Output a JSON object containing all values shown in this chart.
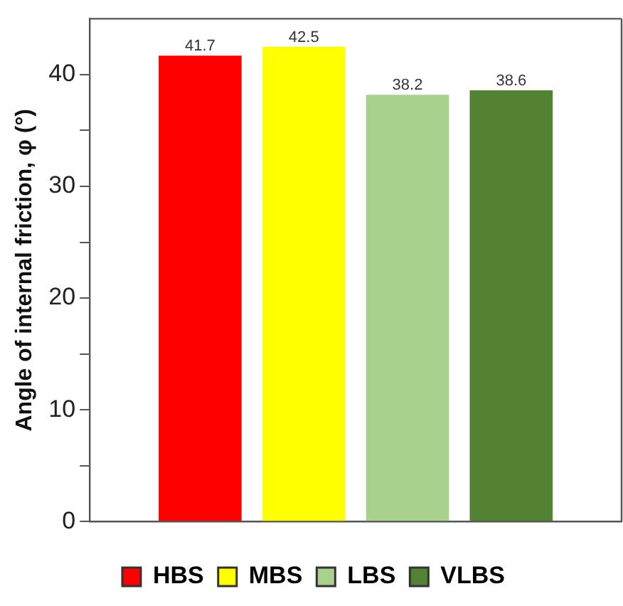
{
  "chart_data": {
    "type": "bar",
    "ylabel": "Angle of internal friction, φ (°)",
    "categories": [
      null
    ],
    "series": [
      {
        "name": "HBS",
        "color": "#ff0000",
        "values": [
          41.7
        ]
      },
      {
        "name": "MBS",
        "color": "#ffff00",
        "values": [
          42.5
        ]
      },
      {
        "name": "LBS",
        "color": "#a9d18e",
        "values": [
          38.2
        ]
      },
      {
        "name": "VLBS",
        "color": "#548235",
        "values": [
          38.6
        ]
      }
    ],
    "ylim": [
      0,
      45
    ],
    "yticks": [
      0,
      {
        "value": 5,
        "label": null
      },
      10,
      {
        "value": 15,
        "label": null
      },
      20,
      {
        "value": 25,
        "label": null
      },
      30,
      {
        "value": 35,
        "label": null
      },
      40
    ],
    "data_labels": true,
    "legend": "bottom",
    "grid": false
  }
}
